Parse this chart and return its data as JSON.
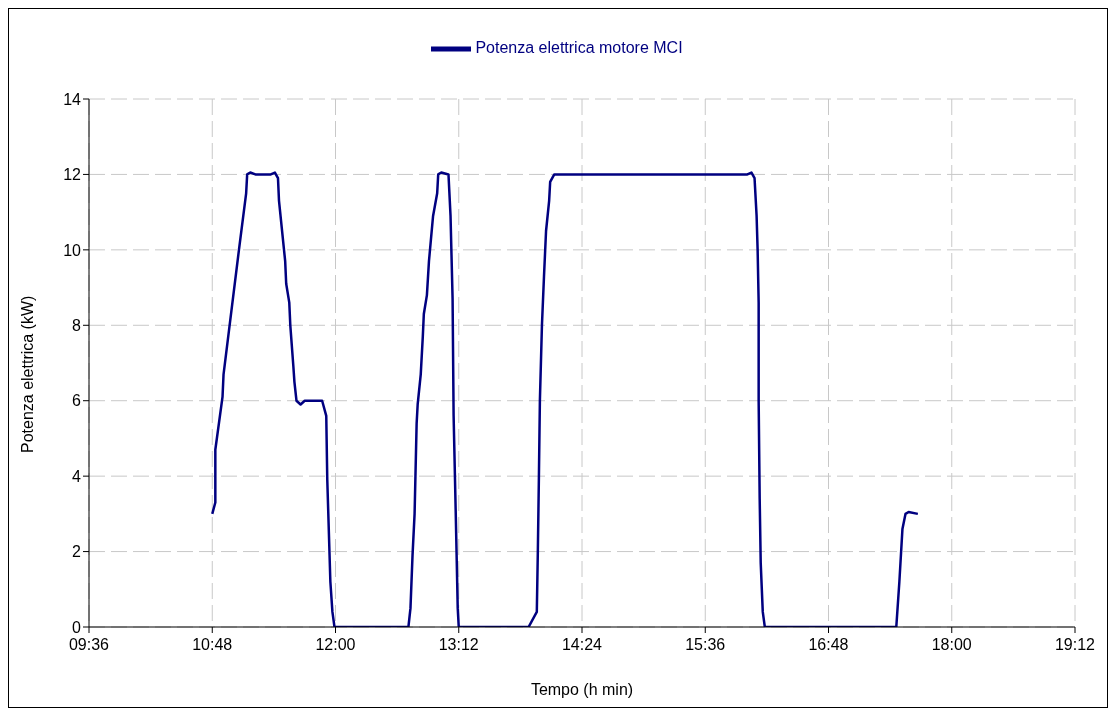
{
  "chart_data": {
    "type": "line",
    "xlabel": "Tempo (h min)",
    "ylabel": "Potenza elettrica (kW)",
    "xlim": [
      9.6,
      19.2
    ],
    "xticks": [
      {
        "value": 9.6,
        "label": "09:36"
      },
      {
        "value": 10.8,
        "label": "10:48"
      },
      {
        "value": 12,
        "label": "12:00"
      },
      {
        "value": 13.2,
        "label": "13:12"
      },
      {
        "value": 14.4,
        "label": "14:24"
      },
      {
        "value": 15.6,
        "label": "15:36"
      },
      {
        "value": 16.8,
        "label": "16:48"
      },
      {
        "value": 18,
        "label": "18:00"
      },
      {
        "value": 19.2,
        "label": "19:12"
      }
    ],
    "ylim": [
      0,
      14
    ],
    "yticks": [
      0,
      2,
      4,
      6,
      8,
      10,
      12,
      14
    ],
    "grid": true,
    "legend": "top",
    "x": [
      10.8,
      10.83,
      10.83,
      10.9,
      10.91,
      11.06,
      11.13,
      11.14,
      11.17,
      11.22,
      11.37,
      11.41,
      11.44,
      11.45,
      11.51,
      11.52,
      11.55,
      11.56,
      11.59,
      11.6,
      11.62,
      11.66,
      11.7,
      11.83,
      11.87,
      11.91,
      11.92,
      11.95,
      11.97,
      11.99,
      12.71,
      12.73,
      12.75,
      12.77,
      12.79,
      12.8,
      12.83,
      12.85,
      12.86,
      12.89,
      12.91,
      12.95,
      12.99,
      13.0,
      13.03,
      13.1,
      13.12,
      13.14,
      13.15,
      13.17,
      13.19,
      13.2,
      13.88,
      13.96,
      13.97,
      13.98,
      13.99,
      14.01,
      14.03,
      14.05,
      14.08,
      14.09,
      14.13,
      14.16,
      16.01,
      16.05,
      16.08,
      16.1,
      16.11,
      16.12,
      16.12,
      16.13,
      16.14,
      16.16,
      16.18,
      17.46,
      17.49,
      17.52,
      17.55,
      17.58,
      17.67
    ],
    "series": [
      {
        "name": "Potenza elettrica motore MCI",
        "color": "#000080",
        "values": [
          3.0,
          3.3,
          4.7,
          6.1,
          6.7,
          10.0,
          11.5,
          12.0,
          12.05,
          12.0,
          12.0,
          12.05,
          11.9,
          11.3,
          9.7,
          9.1,
          8.6,
          8.0,
          6.9,
          6.5,
          6.0,
          5.9,
          6.0,
          6.0,
          6.0,
          5.6,
          3.9,
          1.2,
          0.4,
          0,
          0,
          0.5,
          1.9,
          3.0,
          5.4,
          5.9,
          6.7,
          7.7,
          8.3,
          8.8,
          9.7,
          10.9,
          11.5,
          12.0,
          12.05,
          12.0,
          10.9,
          8.7,
          5.6,
          3.1,
          0.5,
          0,
          0,
          0.4,
          2.0,
          3.9,
          6.0,
          8.0,
          9.3,
          10.5,
          11.3,
          11.8,
          12.0,
          12.0,
          12.0,
          12.05,
          11.9,
          10.9,
          10.0,
          8.6,
          6.0,
          3.4,
          1.7,
          0.4,
          0,
          0,
          1.2,
          2.6,
          3.0,
          3.05,
          3.0
        ]
      }
    ]
  }
}
